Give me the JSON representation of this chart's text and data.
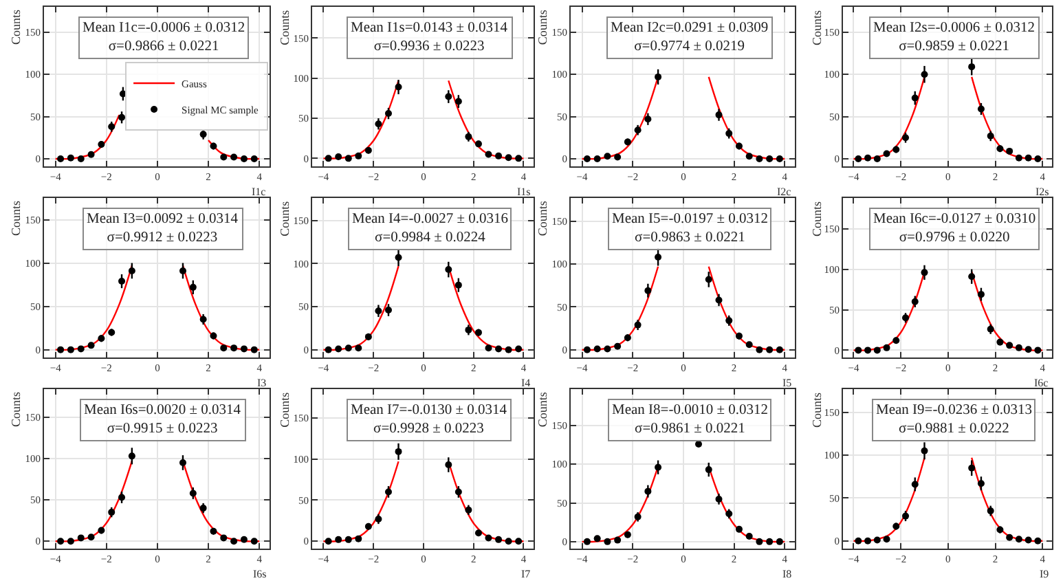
{
  "chart_data": [
    {
      "type": "scatter",
      "xlabel": "I1c",
      "ylabel": "Counts",
      "annotations": [
        "Mean I1c=-0.0006 ± 0.0312\nσ=0.9866 ± 0.0221"
      ],
      "xlim": [
        -4.45,
        4.4
      ],
      "xticks": [
        -4,
        -2,
        0,
        2,
        4
      ],
      "ylim": [
        -9,
        180
      ],
      "yticks": [
        0,
        50,
        100,
        150
      ],
      "grid": true,
      "legend": "center",
      "series": [
        {
          "name": "Gauss",
          "type": "line",
          "color": "#ff0000",
          "marker": "none",
          "x": [
            -4,
            -3.5,
            -3,
            -2.5,
            -2,
            -1.5,
            -1,
            -0.5,
            0,
            0.5,
            1,
            1.5,
            2,
            2.5,
            3,
            3.5,
            4
          ],
          "values": [
            0,
            0,
            2,
            7,
            22,
            52,
            null,
            null,
            null,
            null,
            null,
            null,
            22,
            7,
            2,
            0,
            0
          ]
        },
        {
          "name": "Signal MC sample",
          "color": "#000000",
          "marker": "circle",
          "x": [
            -3.8,
            -3.4,
            -3.0,
            -2.6,
            -2.2,
            -1.8,
            -1.4,
            -1.35,
            -1.0,
            -0.6,
            -0.2,
            0.2,
            0.6,
            1.0,
            1.4,
            1.8,
            2.2,
            2.6,
            3.0,
            3.4,
            3.8
          ],
          "values": [
            0,
            1,
            0,
            5,
            17,
            38,
            49,
            77,
            null,
            null,
            null,
            null,
            null,
            null,
            null,
            29,
            15,
            2,
            2,
            0,
            0
          ],
          "errors": [
            null,
            1,
            null,
            2,
            4,
            6,
            7,
            8,
            null,
            null,
            null,
            null,
            null,
            null,
            null,
            6,
            4,
            1,
            1,
            null,
            null
          ]
        }
      ]
    },
    {
      "type": "scatter",
      "xlabel": "I1s",
      "ylabel": "Counts",
      "annotations": [
        "Mean I1s=0.0143 ± 0.0314\nσ=0.9936 ± 0.0223"
      ],
      "xlim": [
        -4.45,
        4.4
      ],
      "xticks": [
        -4,
        -2,
        0,
        2,
        4
      ],
      "ylim": [
        -10,
        189
      ],
      "yticks": [
        0,
        50,
        100,
        150
      ],
      "grid": true,
      "x": [
        -3.8,
        -3.4,
        -3.0,
        -2.6,
        -2.2,
        -1.8,
        -1.4,
        -1.0,
        -0.6,
        -0.2,
        0.2,
        0.6,
        1.0,
        1.4,
        1.8,
        2.2,
        2.6,
        3.0,
        3.4,
        3.8
      ],
      "series": [
        {
          "type": "line",
          "color": "#ff0000",
          "marker": "none",
          "x": [
            -4,
            -3.5,
            -3,
            -2.5,
            -2,
            -1.5,
            -1,
            -0.5,
            0,
            0.5,
            1,
            1.5,
            2,
            2.5,
            3,
            3.5,
            4
          ],
          "values": [
            0,
            0,
            2,
            7,
            22,
            52,
            97,
            null,
            null,
            null,
            97,
            52,
            22,
            7,
            2,
            0,
            0
          ]
        },
        {
          "color": "#000000",
          "marker": "circle",
          "values": [
            0,
            2,
            0,
            3,
            10,
            43,
            56,
            89,
            null,
            null,
            null,
            null,
            77,
            71,
            27,
            18,
            5,
            3,
            1,
            0
          ],
          "errors": [
            null,
            1,
            null,
            2,
            4,
            7,
            7,
            9,
            null,
            null,
            null,
            null,
            8,
            8,
            6,
            4,
            2,
            2,
            1,
            null
          ]
        }
      ]
    },
    {
      "type": "scatter",
      "xlabel": "I2c",
      "ylabel": "Counts",
      "annotations": [
        "Mean I2c=0.0291 ± 0.0309\nσ=0.9774 ± 0.0219"
      ],
      "xlim": [
        -4.45,
        4.4
      ],
      "xticks": [
        -4,
        -2,
        0,
        2,
        4
      ],
      "ylim": [
        -9,
        180
      ],
      "yticks": [
        0,
        50,
        100,
        150
      ],
      "grid": true,
      "x": [
        -3.8,
        -3.4,
        -3.0,
        -2.6,
        -2.2,
        -1.8,
        -1.4,
        -1.0,
        -0.6,
        -0.2,
        0.2,
        0.6,
        1.0,
        1.4,
        1.8,
        2.2,
        2.6,
        3.0,
        3.4,
        3.8
      ],
      "series": [
        {
          "type": "line",
          "color": "#ff0000",
          "marker": "none",
          "x": [
            -4,
            -3.5,
            -3,
            -2.5,
            -2,
            -1.5,
            -1,
            -0.5,
            0,
            0.5,
            1,
            1.5,
            2,
            2.5,
            3,
            3.5,
            4
          ],
          "values": [
            0,
            0,
            2,
            7,
            22,
            52,
            97,
            null,
            null,
            null,
            97,
            52,
            22,
            7,
            2,
            0,
            0
          ]
        },
        {
          "color": "#000000",
          "marker": "circle",
          "values": [
            0,
            0,
            3,
            2,
            20,
            34,
            47,
            97,
            null,
            null,
            null,
            null,
            null,
            52,
            30,
            15,
            3,
            0,
            0,
            0
          ],
          "errors": [
            null,
            null,
            2,
            1,
            4,
            6,
            7,
            9,
            null,
            null,
            null,
            null,
            null,
            7,
            6,
            4,
            2,
            null,
            null,
            null
          ]
        }
      ]
    },
    {
      "type": "scatter",
      "xlabel": "I2s",
      "ylabel": "Counts",
      "annotations": [
        "Mean I2s=-0.0006 ± 0.0312\nσ=0.9859 ± 0.0221"
      ],
      "xlim": [
        -4.45,
        4.4
      ],
      "xticks": [
        -4,
        -2,
        0,
        2,
        4
      ],
      "ylim": [
        -9,
        180
      ],
      "yticks": [
        0,
        50,
        100,
        150
      ],
      "grid": true,
      "x": [
        -3.8,
        -3.4,
        -3.0,
        -2.6,
        -2.2,
        -1.8,
        -1.4,
        -1.0,
        -0.6,
        -0.2,
        0.2,
        0.6,
        1.0,
        1.4,
        1.8,
        2.2,
        2.6,
        3.0,
        3.4,
        3.8
      ],
      "series": [
        {
          "type": "line",
          "color": "#ff0000",
          "marker": "none",
          "x": [
            -4,
            -3.5,
            -3,
            -2.5,
            -2,
            -1.5,
            -1,
            -0.5,
            0,
            0.5,
            1,
            1.5,
            2,
            2.5,
            3,
            3.5,
            4
          ],
          "values": [
            0,
            0,
            2,
            7,
            22,
            52,
            97,
            null,
            null,
            null,
            97,
            52,
            22,
            7,
            2,
            0,
            0
          ]
        },
        {
          "color": "#000000",
          "marker": "circle",
          "values": [
            0,
            1,
            0,
            6,
            11,
            25,
            72,
            100,
            null,
            null,
            null,
            null,
            109,
            59,
            27,
            12,
            9,
            1,
            1,
            0
          ],
          "errors": [
            null,
            1,
            null,
            2,
            4,
            6,
            8,
            10,
            null,
            null,
            null,
            null,
            10,
            7,
            6,
            4,
            3,
            1,
            1,
            null
          ]
        }
      ]
    },
    {
      "type": "scatter",
      "xlabel": "I3",
      "ylabel": "Counts",
      "annotations": [
        "Mean I3=0.0092 ± 0.0314\nσ=0.9912 ± 0.0223"
      ],
      "xlim": [
        -4.45,
        4.4
      ],
      "xticks": [
        -4,
        -2,
        0,
        2,
        4
      ],
      "ylim": [
        -9,
        175
      ],
      "yticks": [
        0,
        50,
        100,
        150
      ],
      "grid": true,
      "x": [
        -3.8,
        -3.4,
        -3.0,
        -2.6,
        -2.2,
        -1.8,
        -1.4,
        -1.0,
        -0.6,
        -0.2,
        0.2,
        0.6,
        1.0,
        1.4,
        1.8,
        2.2,
        2.6,
        3.0,
        3.4,
        3.8
      ],
      "series": [
        {
          "type": "line",
          "color": "#ff0000",
          "marker": "none",
          "x": [
            -4,
            -3.5,
            -3,
            -2.5,
            -2,
            -1.5,
            -1,
            -0.5,
            0,
            0.5,
            1,
            1.5,
            2,
            2.5,
            3,
            3.5,
            4
          ],
          "values": [
            0,
            0,
            2,
            7,
            22,
            52,
            97,
            null,
            null,
            null,
            97,
            52,
            22,
            7,
            2,
            0,
            0
          ]
        },
        {
          "color": "#000000",
          "marker": "circle",
          "values": [
            0,
            0,
            1,
            5,
            13,
            20,
            79,
            91,
            null,
            null,
            null,
            null,
            91,
            72,
            35,
            16,
            2,
            2,
            1,
            0
          ],
          "errors": [
            null,
            null,
            1,
            2,
            4,
            4,
            8,
            9,
            null,
            null,
            null,
            null,
            9,
            8,
            6,
            4,
            1,
            1,
            1,
            null
          ]
        }
      ]
    },
    {
      "type": "scatter",
      "xlabel": "I4",
      "ylabel": "Counts",
      "annotations": [
        "Mean I4=-0.0027 ± 0.0316\nσ=0.9984 ± 0.0224"
      ],
      "xlim": [
        -4.45,
        4.4
      ],
      "xticks": [
        -4,
        -2,
        0,
        2,
        4
      ],
      "ylim": [
        -9,
        176
      ],
      "yticks": [
        0,
        50,
        100,
        150
      ],
      "grid": true,
      "x": [
        -3.8,
        -3.4,
        -3.0,
        -2.6,
        -2.2,
        -1.8,
        -1.4,
        -1.0,
        -0.6,
        -0.2,
        0.2,
        0.6,
        1.0,
        1.4,
        1.8,
        2.2,
        2.6,
        3.0,
        3.4,
        3.8
      ],
      "series": [
        {
          "type": "line",
          "color": "#ff0000",
          "marker": "none",
          "x": [
            -4,
            -3.5,
            -3,
            -2.5,
            -2,
            -1.5,
            -1,
            -0.5,
            0,
            0.5,
            1,
            1.5,
            2,
            2.5,
            3,
            3.5,
            4
          ],
          "values": [
            0,
            0,
            2,
            7,
            22,
            52,
            97,
            null,
            null,
            null,
            97,
            52,
            22,
            7,
            2,
            0,
            0
          ]
        },
        {
          "color": "#000000",
          "marker": "circle",
          "values": [
            0,
            1,
            2,
            2,
            15,
            45,
            46,
            107,
            null,
            null,
            null,
            null,
            93,
            75,
            23,
            20,
            2,
            1,
            0,
            1
          ],
          "errors": [
            null,
            1,
            1,
            1,
            4,
            7,
            7,
            10,
            null,
            null,
            null,
            null,
            9,
            8,
            6,
            4,
            1,
            1,
            null,
            1
          ]
        }
      ]
    },
    {
      "type": "scatter",
      "xlabel": "I5",
      "ylabel": "Counts",
      "annotations": [
        "Mean I5=-0.0197 ± 0.0312\nσ=0.9863 ± 0.0221"
      ],
      "xlim": [
        -4.45,
        4.4
      ],
      "xticks": [
        -4,
        -2,
        0,
        2,
        4
      ],
      "ylim": [
        -9,
        177
      ],
      "yticks": [
        0,
        50,
        100,
        150
      ],
      "grid": true,
      "x": [
        -3.8,
        -3.4,
        -3.0,
        -2.6,
        -2.2,
        -1.8,
        -1.4,
        -1.0,
        -0.6,
        -0.2,
        0.2,
        0.6,
        1.0,
        1.4,
        1.8,
        2.2,
        2.6,
        3.0,
        3.4,
        3.8
      ],
      "series": [
        {
          "type": "line",
          "color": "#ff0000",
          "marker": "none",
          "x": [
            -4,
            -3.5,
            -3,
            -2.5,
            -2,
            -1.5,
            -1,
            -0.5,
            0,
            0.5,
            1,
            1.5,
            2,
            2.5,
            3,
            3.5,
            4
          ],
          "values": [
            0,
            0,
            2,
            7,
            22,
            52,
            97,
            null,
            null,
            null,
            97,
            52,
            22,
            7,
            2,
            0,
            0
          ]
        },
        {
          "color": "#000000",
          "marker": "circle",
          "values": [
            0,
            1,
            1,
            4,
            14,
            29,
            69,
            108,
            null,
            null,
            null,
            null,
            82,
            58,
            34,
            16,
            6,
            0,
            0,
            0
          ],
          "errors": [
            null,
            1,
            1,
            2,
            4,
            6,
            8,
            10,
            null,
            null,
            null,
            null,
            9,
            7,
            6,
            4,
            2,
            null,
            null,
            null
          ]
        }
      ]
    },
    {
      "type": "scatter",
      "xlabel": "I6c",
      "ylabel": "Counts",
      "annotations": [
        "Mean I6c=-0.0127 ± 0.0310\nσ=0.9796 ± 0.0220"
      ],
      "xlim": [
        -4.45,
        4.4
      ],
      "xticks": [
        -4,
        -2,
        0,
        2,
        4
      ],
      "ylim": [
        -9,
        188
      ],
      "yticks": [
        0,
        50,
        100,
        150
      ],
      "grid": true,
      "x": [
        -3.8,
        -3.4,
        -3.0,
        -2.6,
        -2.2,
        -1.8,
        -1.4,
        -1.0,
        -0.6,
        -0.2,
        0.2,
        0.6,
        1.0,
        1.4,
        1.8,
        2.2,
        2.6,
        3.0,
        3.4,
        3.8
      ],
      "series": [
        {
          "type": "line",
          "color": "#ff0000",
          "marker": "none",
          "x": [
            -4,
            -3.5,
            -3,
            -2.5,
            -2,
            -1.5,
            -1,
            -0.5,
            0,
            0.5,
            1,
            1.5,
            2,
            2.5,
            3,
            3.5,
            4
          ],
          "values": [
            0,
            0,
            2,
            7,
            22,
            52,
            97,
            null,
            null,
            null,
            97,
            52,
            22,
            7,
            2,
            0,
            0
          ]
        },
        {
          "color": "#000000",
          "marker": "circle",
          "values": [
            0,
            0,
            0,
            3,
            12,
            40,
            60,
            96,
            null,
            null,
            null,
            null,
            91,
            69,
            26,
            10,
            6,
            3,
            1,
            0
          ],
          "errors": [
            null,
            null,
            null,
            2,
            4,
            6,
            7,
            9,
            null,
            null,
            null,
            null,
            9,
            8,
            6,
            4,
            2,
            2,
            1,
            null
          ]
        }
      ]
    },
    {
      "type": "scatter",
      "xlabel": "I6s",
      "ylabel": "Counts",
      "annotations": [
        "Mean I6s=0.0020 ± 0.0314\nσ=0.9915 ± 0.0223"
      ],
      "xlim": [
        -4.45,
        4.4
      ],
      "xticks": [
        -4,
        -2,
        0,
        2,
        4
      ],
      "ylim": [
        -9,
        184
      ],
      "yticks": [
        0,
        50,
        100,
        150
      ],
      "grid": true,
      "x": [
        -3.8,
        -3.4,
        -3.0,
        -2.6,
        -2.2,
        -1.8,
        -1.4,
        -1.0,
        -0.6,
        -0.2,
        0.2,
        0.6,
        1.0,
        1.4,
        1.8,
        2.2,
        2.6,
        3.0,
        3.4,
        3.8
      ],
      "series": [
        {
          "type": "line",
          "color": "#ff0000",
          "marker": "none",
          "x": [
            -4,
            -3.5,
            -3,
            -2.5,
            -2,
            -1.5,
            -1,
            -0.5,
            0,
            0.5,
            1,
            1.5,
            2,
            2.5,
            3,
            3.5,
            4
          ],
          "values": [
            0,
            0,
            2,
            7,
            22,
            52,
            97,
            null,
            null,
            null,
            97,
            52,
            22,
            7,
            2,
            0,
            0
          ]
        },
        {
          "color": "#000000",
          "marker": "circle",
          "values": [
            0,
            0,
            4,
            5,
            13,
            35,
            53,
            103,
            null,
            null,
            null,
            null,
            95,
            58,
            40,
            12,
            4,
            0,
            2,
            0
          ],
          "errors": [
            null,
            null,
            2,
            2,
            4,
            6,
            7,
            10,
            null,
            null,
            null,
            null,
            9,
            7,
            6,
            4,
            2,
            null,
            1,
            null
          ]
        }
      ]
    },
    {
      "type": "scatter",
      "xlabel": "I7",
      "ylabel": "Counts",
      "annotations": [
        "Mean I7=-0.0130 ± 0.0314\nσ=0.9928 ± 0.0223"
      ],
      "xlim": [
        -4.45,
        4.4
      ],
      "xticks": [
        -4,
        -2,
        0,
        2,
        4
      ],
      "ylim": [
        -9,
        185
      ],
      "yticks": [
        0,
        50,
        100,
        150
      ],
      "grid": true,
      "x": [
        -3.8,
        -3.4,
        -3.0,
        -2.6,
        -2.2,
        -1.8,
        -1.4,
        -1.0,
        -0.6,
        -0.2,
        0.2,
        0.6,
        1.0,
        1.4,
        1.8,
        2.2,
        2.6,
        3.0,
        3.4,
        3.8
      ],
      "series": [
        {
          "type": "line",
          "color": "#ff0000",
          "marker": "none",
          "x": [
            -4,
            -3.5,
            -3,
            -2.5,
            -2,
            -1.5,
            -1,
            -0.5,
            0,
            0.5,
            1,
            1.5,
            2,
            2.5,
            3,
            3.5,
            4
          ],
          "values": [
            0,
            0,
            2,
            7,
            22,
            52,
            97,
            null,
            null,
            null,
            97,
            52,
            22,
            7,
            2,
            0,
            0
          ]
        },
        {
          "color": "#000000",
          "marker": "circle",
          "values": [
            0,
            2,
            2,
            3,
            18,
            27,
            60,
            109,
            null,
            null,
            null,
            null,
            93,
            60,
            38,
            10,
            4,
            2,
            0,
            0
          ],
          "errors": [
            null,
            1,
            1,
            2,
            4,
            6,
            7,
            10,
            null,
            null,
            null,
            null,
            9,
            7,
            6,
            4,
            2,
            1,
            null,
            null
          ]
        }
      ]
    },
    {
      "type": "scatter",
      "xlabel": "I8",
      "ylabel": "Counts",
      "annotations": [
        "Mean I8=-0.0010 ± 0.0312\nσ=0.9861 ± 0.0221"
      ],
      "xlim": [
        -4.45,
        4.4
      ],
      "xticks": [
        -4,
        -2,
        0,
        2,
        4
      ],
      "ylim": [
        -9,
        197
      ],
      "yticks": [
        0,
        50,
        100,
        150
      ],
      "grid": true,
      "x": [
        -3.8,
        -3.4,
        -3.0,
        -2.6,
        -2.2,
        -1.8,
        -1.4,
        -1.0,
        -0.6,
        -0.2,
        0.2,
        0.6,
        1.0,
        1.4,
        1.8,
        2.2,
        2.6,
        3.0,
        3.4,
        3.8
      ],
      "series": [
        {
          "type": "line",
          "color": "#ff0000",
          "marker": "none",
          "x": [
            -4,
            -3.5,
            -3,
            -2.5,
            -2,
            -1.5,
            -1,
            -0.5,
            0,
            0.5,
            1,
            1.5,
            2,
            2.5,
            3,
            3.5,
            4
          ],
          "values": [
            0,
            0,
            2,
            7,
            22,
            52,
            97,
            null,
            null,
            null,
            97,
            52,
            22,
            7,
            2,
            0,
            0
          ]
        },
        {
          "color": "#000000",
          "marker": "circle",
          "values": [
            0,
            4,
            0,
            2,
            9,
            32,
            65,
            96,
            null,
            null,
            null,
            126,
            93,
            55,
            36,
            16,
            7,
            0,
            0,
            0
          ],
          "errors": [
            null,
            2,
            null,
            1,
            4,
            6,
            8,
            9,
            null,
            null,
            null,
            null,
            9,
            7,
            6,
            4,
            2,
            null,
            null,
            null
          ]
        }
      ]
    },
    {
      "type": "scatter",
      "xlabel": "I9",
      "ylabel": "Counts",
      "annotations": [
        "Mean I9=-0.0236 ± 0.0313\nσ=0.9881 ± 0.0222"
      ],
      "xlim": [
        -4.45,
        4.4
      ],
      "xticks": [
        -4,
        -2,
        0,
        2,
        4
      ],
      "ylim": [
        -9,
        177
      ],
      "yticks": [
        0,
        50,
        100,
        150
      ],
      "grid": true,
      "x": [
        -3.8,
        -3.4,
        -3.0,
        -2.6,
        -2.2,
        -1.8,
        -1.4,
        -1.0,
        -0.6,
        -0.2,
        0.2,
        0.6,
        1.0,
        1.4,
        1.8,
        2.2,
        2.6,
        3.0,
        3.4,
        3.8
      ],
      "series": [
        {
          "type": "line",
          "color": "#ff0000",
          "marker": "none",
          "x": [
            -4,
            -3.5,
            -3,
            -2.5,
            -2,
            -1.5,
            -1,
            -0.5,
            0,
            0.5,
            1,
            1.5,
            2,
            2.5,
            3,
            3.5,
            4
          ],
          "values": [
            0,
            0,
            2,
            7,
            22,
            52,
            97,
            null,
            null,
            null,
            97,
            52,
            22,
            7,
            2,
            0,
            0
          ]
        },
        {
          "color": "#000000",
          "marker": "circle",
          "values": [
            0,
            0,
            1,
            2,
            17,
            29,
            66,
            105,
            null,
            null,
            null,
            null,
            85,
            67,
            35,
            13,
            4,
            2,
            1,
            0
          ],
          "errors": [
            null,
            null,
            1,
            1,
            4,
            6,
            8,
            10,
            null,
            null,
            null,
            null,
            9,
            8,
            6,
            4,
            2,
            1,
            1,
            null
          ]
        }
      ]
    }
  ]
}
